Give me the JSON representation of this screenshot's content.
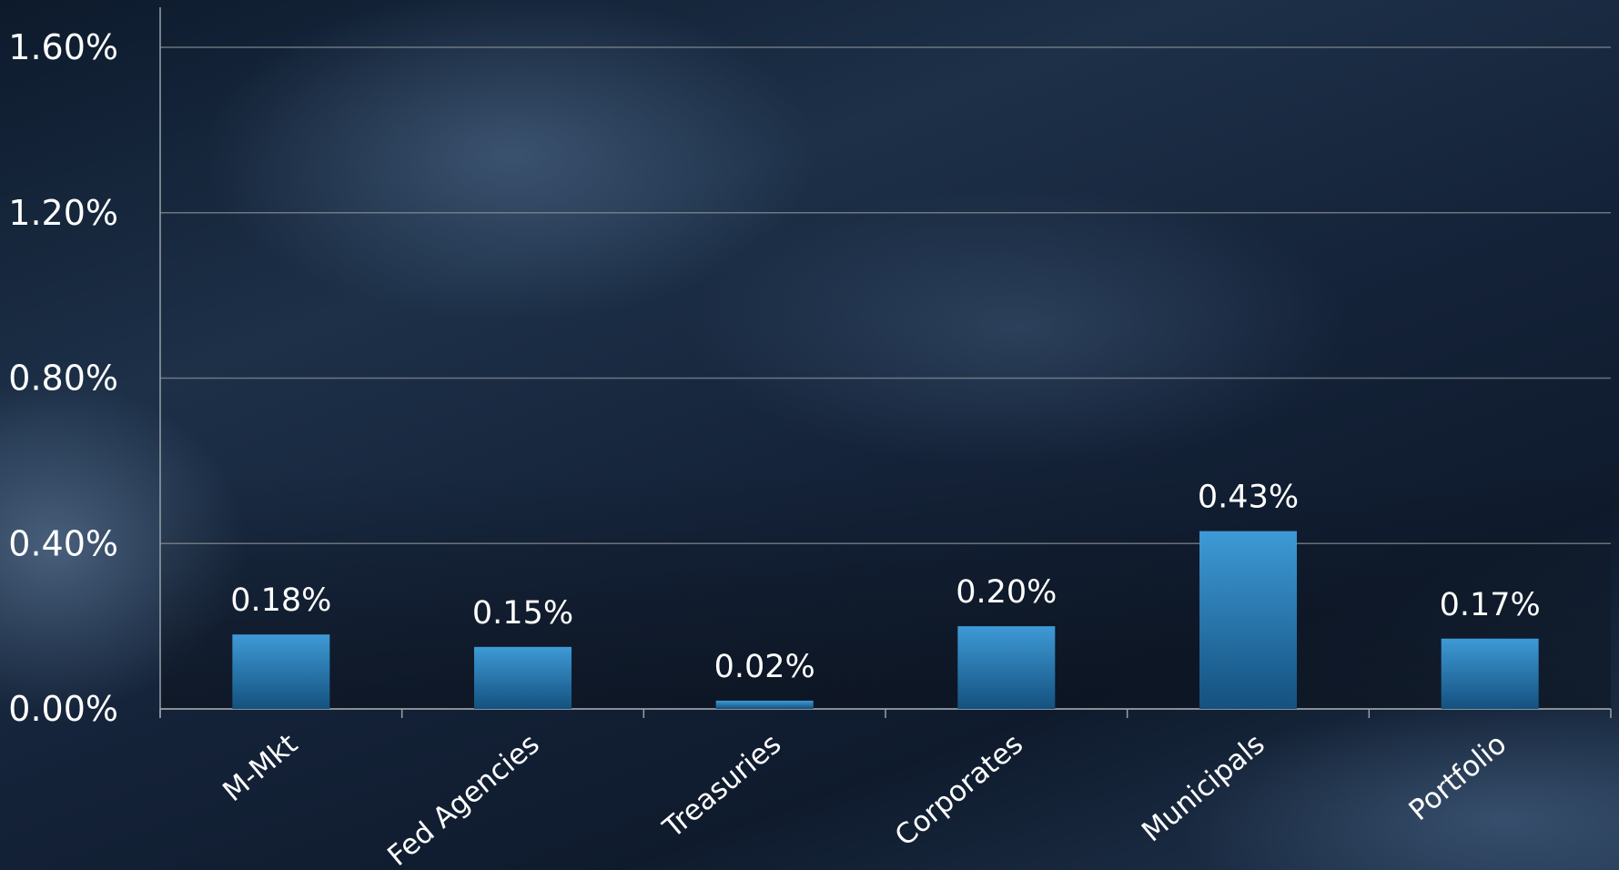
{
  "colors": {
    "bar_top": "#3e9ad6",
    "bar_bottom": "#14517f",
    "gridline": "#8a8f96",
    "axis": "#9aa0a6",
    "text": "#ffffff"
  },
  "chart_data": {
    "type": "bar",
    "title": "",
    "xlabel": "",
    "ylabel": "",
    "categories": [
      "M-Mkt",
      "Fed Agencies",
      "Treasuries",
      "Corporates",
      "Municipals",
      "Portfolio"
    ],
    "values": [
      0.18,
      0.15,
      0.02,
      0.2,
      0.43,
      0.17
    ],
    "value_labels": [
      "0.18%",
      "0.15%",
      "0.02%",
      "0.20%",
      "0.43%",
      "0.17%"
    ],
    "ylim": [
      0,
      1.6
    ],
    "yticks": [
      0,
      0.4,
      0.8,
      1.2,
      1.6
    ],
    "ytick_labels": [
      "0.00%",
      "0.40%",
      "0.80%",
      "1.20%",
      "1.60%"
    ],
    "grid": true,
    "legend": "none"
  }
}
